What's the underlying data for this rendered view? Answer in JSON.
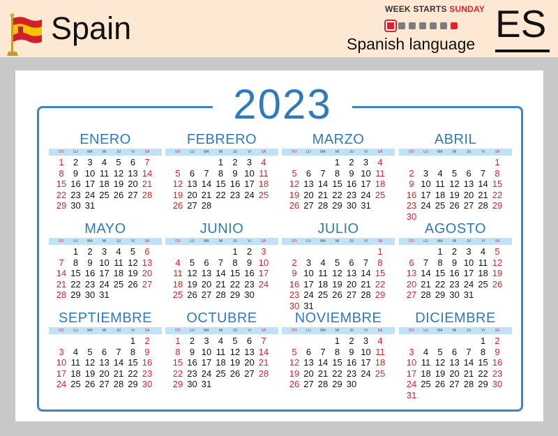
{
  "header": {
    "country": "Spain",
    "week_label_prefix": "WEEK STARTS",
    "week_label_day": "SUNDAY",
    "language": "Spanish language",
    "code": "ES",
    "flag_icon": "spain-flag-icon",
    "colors": {
      "accent": "#2f79bd",
      "weekend": "#e2202a",
      "dayband": "#bfe2f7"
    }
  },
  "calendar": {
    "year": "2023",
    "weekdays": [
      "DO",
      "LU",
      "MA",
      "MI",
      "JU",
      "VI",
      "SÁ"
    ],
    "months": [
      {
        "name": "ENERO",
        "offset": 0,
        "days": 31
      },
      {
        "name": "FEBRERO",
        "offset": 3,
        "days": 28
      },
      {
        "name": "MARZO",
        "offset": 3,
        "days": 31
      },
      {
        "name": "ABRIL",
        "offset": 6,
        "days": 30
      },
      {
        "name": "MAYO",
        "offset": 1,
        "days": 31
      },
      {
        "name": "JUNIO",
        "offset": 4,
        "days": 30
      },
      {
        "name": "JULIO",
        "offset": 6,
        "days": 31
      },
      {
        "name": "AGOSTO",
        "offset": 2,
        "days": 31
      },
      {
        "name": "SEPTIEMBRE",
        "offset": 5,
        "days": 30
      },
      {
        "name": "OCTUBRE",
        "offset": 0,
        "days": 31
      },
      {
        "name": "NOVIEMBRE",
        "offset": 3,
        "days": 30
      },
      {
        "name": "DICIEMBRE",
        "offset": 5,
        "days": 31
      }
    ]
  }
}
